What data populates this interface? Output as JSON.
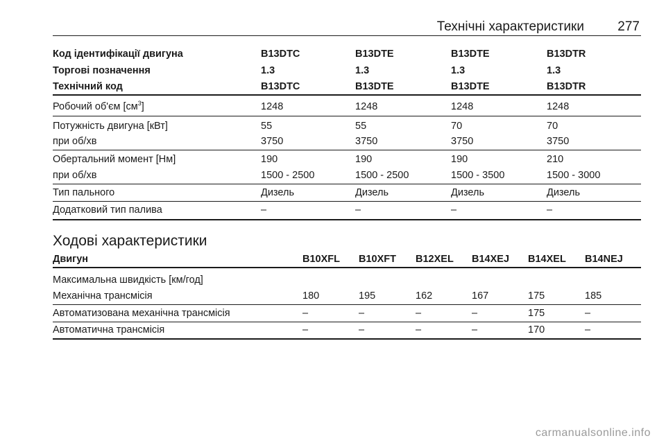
{
  "header": {
    "title": "Технічні характеристики",
    "page_number": "277"
  },
  "engine_table": {
    "head_rows": [
      {
        "label": "Код ідентифікації двигуна",
        "values": [
          "B13DTC",
          "B13DTE",
          "B13DTE",
          "B13DTR"
        ]
      },
      {
        "label": "Торгові позначення",
        "values": [
          "1.3",
          "1.3",
          "1.3",
          "1.3"
        ]
      },
      {
        "label": "Технічний код",
        "values": [
          "B13DTC",
          "B13DTE",
          "B13DTE",
          "B13DTR"
        ]
      }
    ],
    "displacement": {
      "label": "Робочий об'єм [см",
      "sup": "3",
      "label_end": "]",
      "values": [
        "1248",
        "1248",
        "1248",
        "1248"
      ]
    },
    "rows": [
      {
        "label": "Потужність двигуна [кВт]",
        "values": [
          "55",
          "55",
          "70",
          "70"
        ]
      },
      {
        "label": "при об/хв",
        "values": [
          "3750",
          "3750",
          "3750",
          "3750"
        ]
      },
      {
        "label": "Обертальний момент [Нм]",
        "values": [
          "190",
          "190",
          "190",
          "210"
        ]
      },
      {
        "label": "при об/хв",
        "values": [
          "1500 - 2500",
          "1500 - 2500",
          "1500 - 3500",
          "1500 - 3000"
        ]
      },
      {
        "label": "Тип пального",
        "values": [
          "Дизель",
          "Дизель",
          "Дизель",
          "Дизель"
        ]
      },
      {
        "label": "Додатковий тип палива",
        "values": [
          "–",
          "–",
          "–",
          "–"
        ]
      }
    ]
  },
  "driving_section": {
    "title": "Ходові характеристики",
    "header": {
      "label": "Двигун",
      "values": [
        "B10XFL",
        "B10XFT",
        "B12XEL",
        "B14XEJ",
        "B14XEL",
        "B14NEJ"
      ]
    },
    "subheading": "Максимальна швидкість [км/год]",
    "rows": [
      {
        "label": "Механічна трансмісія",
        "values": [
          "180",
          "195",
          "162",
          "167",
          "175",
          "185"
        ]
      },
      {
        "label": "Автоматизована механічна трансмісія",
        "values": [
          "–",
          "–",
          "–",
          "–",
          "175",
          "–"
        ]
      },
      {
        "label": "Автоматична трансмісія",
        "values": [
          "–",
          "–",
          "–",
          "–",
          "170",
          "–"
        ]
      }
    ]
  },
  "watermark": "carmanualsonline.info"
}
